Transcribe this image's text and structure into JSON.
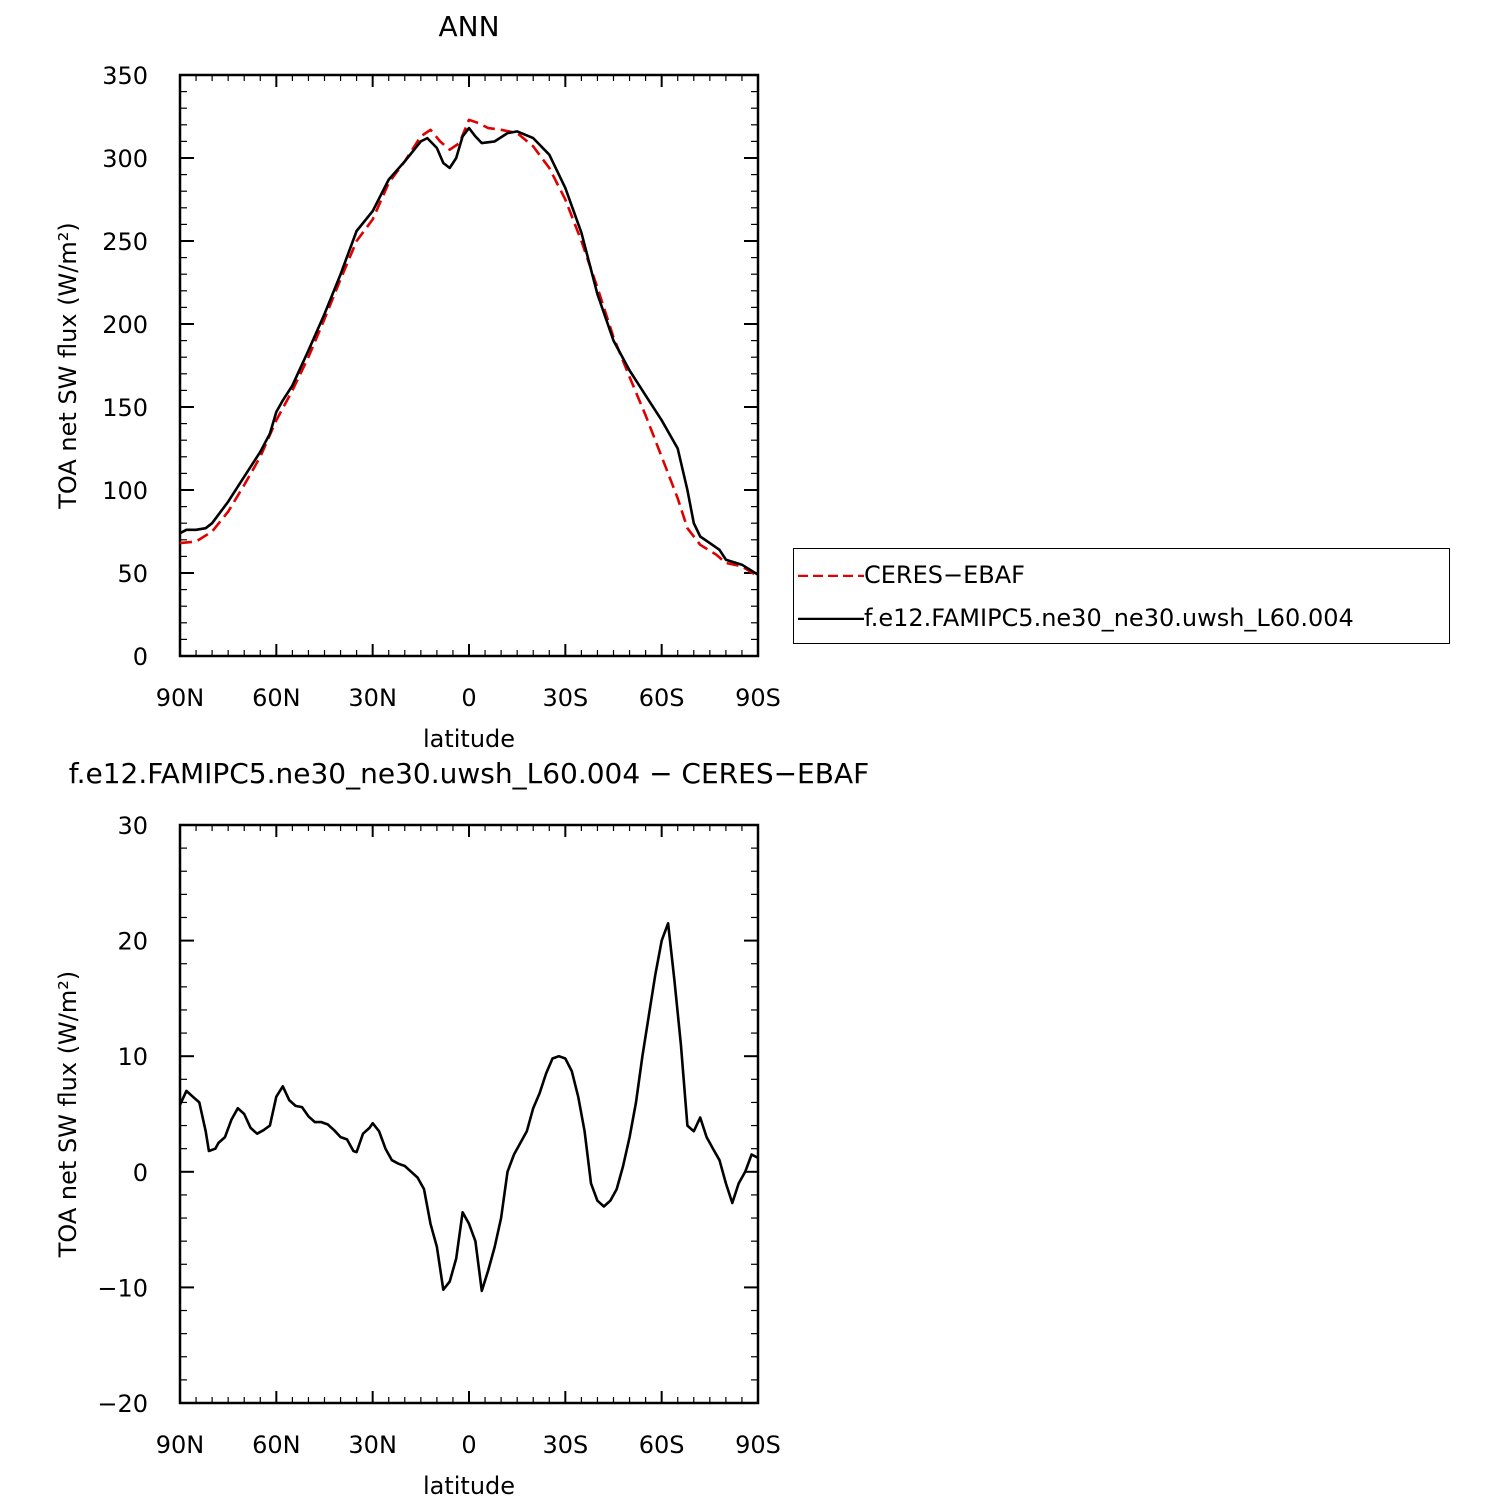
{
  "chart_data": [
    {
      "type": "line",
      "title": "ANN",
      "xlabel": "latitude",
      "ylabel": "TOA net SW flux (W/m²)",
      "xlim": [
        90,
        -90
      ],
      "ylim": [
        0,
        350
      ],
      "x_ticks": [
        90,
        60,
        30,
        0,
        -30,
        -60,
        -90
      ],
      "x_tick_labels": [
        "90N",
        "60N",
        "30N",
        "0",
        "30S",
        "60S",
        "90S"
      ],
      "y_ticks": [
        0,
        50,
        100,
        150,
        200,
        250,
        300,
        350
      ],
      "y_tick_labels": [
        "0",
        "50",
        "100",
        "150",
        "200",
        "250",
        "300",
        "350"
      ],
      "legend_position": "right",
      "series": [
        {
          "name": "CERES−EBAF",
          "color": "#e00000",
          "dash": "dashed",
          "points": [
            [
              90,
              68
            ],
            [
              85,
              69
            ],
            [
              80,
              75
            ],
            [
              75,
              87
            ],
            [
              70,
              103
            ],
            [
              65,
              120
            ],
            [
              60,
              142
            ],
            [
              55,
              160
            ],
            [
              50,
              180
            ],
            [
              45,
              203
            ],
            [
              40,
              227
            ],
            [
              35,
              250
            ],
            [
              30,
              263
            ],
            [
              25,
              285
            ],
            [
              20,
              298
            ],
            [
              15,
              313
            ],
            [
              12,
              317
            ],
            [
              9,
              310
            ],
            [
              6,
              305
            ],
            [
              3,
              309
            ],
            [
              0,
              323
            ],
            [
              -3,
              321
            ],
            [
              -6,
              318
            ],
            [
              -10,
              317
            ],
            [
              -15,
              315
            ],
            [
              -20,
              307
            ],
            [
              -25,
              294
            ],
            [
              -30,
              275
            ],
            [
              -35,
              250
            ],
            [
              -40,
              222
            ],
            [
              -45,
              192
            ],
            [
              -50,
              168
            ],
            [
              -55,
              145
            ],
            [
              -60,
              120
            ],
            [
              -65,
              95
            ],
            [
              -68,
              77
            ],
            [
              -72,
              67
            ],
            [
              -77,
              61
            ],
            [
              -80,
              56
            ],
            [
              -85,
              54
            ],
            [
              -90,
              48
            ]
          ]
        },
        {
          "name": "f.e12.FAMIPC5.ne30_ne30.uwsh_L60.004",
          "color": "#000000",
          "dash": "solid",
          "points": [
            [
              90,
              74
            ],
            [
              88,
              76
            ],
            [
              85,
              76
            ],
            [
              82,
              77
            ],
            [
              80,
              80
            ],
            [
              75,
              93
            ],
            [
              70,
              108
            ],
            [
              65,
              123
            ],
            [
              62,
              134
            ],
            [
              60,
              147
            ],
            [
              58,
              154
            ],
            [
              55,
              163
            ],
            [
              50,
              184
            ],
            [
              45,
              206
            ],
            [
              40,
              230
            ],
            [
              35,
              256
            ],
            [
              30,
              268
            ],
            [
              25,
              287
            ],
            [
              20,
              298
            ],
            [
              15,
              310
            ],
            [
              13,
              312
            ],
            [
              10,
              306
            ],
            [
              8,
              297
            ],
            [
              6,
              294
            ],
            [
              4,
              300
            ],
            [
              2,
              313
            ],
            [
              0,
              318
            ],
            [
              -2,
              313
            ],
            [
              -4,
              309
            ],
            [
              -8,
              310
            ],
            [
              -12,
              315
            ],
            [
              -15,
              316
            ],
            [
              -20,
              312
            ],
            [
              -25,
              302
            ],
            [
              -30,
              282
            ],
            [
              -35,
              255
            ],
            [
              -40,
              218
            ],
            [
              -45,
              190
            ],
            [
              -50,
              172
            ],
            [
              -55,
              157
            ],
            [
              -60,
              142
            ],
            [
              -65,
              125
            ],
            [
              -68,
              100
            ],
            [
              -70,
              80
            ],
            [
              -72,
              72
            ],
            [
              -75,
              68
            ],
            [
              -78,
              64
            ],
            [
              -80,
              58
            ],
            [
              -85,
              55
            ],
            [
              -90,
              49
            ]
          ]
        }
      ]
    },
    {
      "type": "line",
      "title": "f.e12.FAMIPC5.ne30_ne30.uwsh_L60.004 − CERES−EBAF",
      "xlabel": "latitude",
      "ylabel": "TOA net SW flux (W/m²)",
      "xlim": [
        90,
        -90
      ],
      "ylim": [
        -20,
        30
      ],
      "x_ticks": [
        90,
        60,
        30,
        0,
        -30,
        -60,
        -90
      ],
      "x_tick_labels": [
        "90N",
        "60N",
        "30N",
        "0",
        "30S",
        "60S",
        "90S"
      ],
      "y_ticks": [
        -20,
        -10,
        0,
        10,
        20,
        30
      ],
      "y_tick_labels": [
        "−20",
        "−10",
        "0",
        "10",
        "20",
        "30"
      ],
      "series": [
        {
          "color": "#000000",
          "dash": "solid",
          "points": [
            [
              90,
              5.8
            ],
            [
              88,
              7.0
            ],
            [
              86,
              6.5
            ],
            [
              84,
              6.0
            ],
            [
              82,
              3.5
            ],
            [
              81,
              1.8
            ],
            [
              79,
              2.0
            ],
            [
              78,
              2.5
            ],
            [
              76,
              3.0
            ],
            [
              74,
              4.5
            ],
            [
              72,
              5.5
            ],
            [
              70,
              5.0
            ],
            [
              68,
              3.8
            ],
            [
              66,
              3.3
            ],
            [
              64,
              3.6
            ],
            [
              62,
              4.0
            ],
            [
              60,
              6.5
            ],
            [
              58,
              7.4
            ],
            [
              56,
              6.2
            ],
            [
              54,
              5.7
            ],
            [
              52,
              5.6
            ],
            [
              50,
              4.8
            ],
            [
              48,
              4.3
            ],
            [
              46,
              4.3
            ],
            [
              44,
              4.1
            ],
            [
              42,
              3.6
            ],
            [
              40,
              3.0
            ],
            [
              38,
              2.8
            ],
            [
              36,
              1.8
            ],
            [
              35,
              1.7
            ],
            [
              33,
              3.3
            ],
            [
              31,
              3.8
            ],
            [
              30,
              4.2
            ],
            [
              28,
              3.5
            ],
            [
              26,
              2.0
            ],
            [
              24,
              1.0
            ],
            [
              22,
              0.7
            ],
            [
              20,
              0.5
            ],
            [
              18,
              0.0
            ],
            [
              16,
              -0.5
            ],
            [
              14,
              -1.5
            ],
            [
              12,
              -4.5
            ],
            [
              10,
              -6.5
            ],
            [
              8,
              -10.2
            ],
            [
              6,
              -9.5
            ],
            [
              4,
              -7.5
            ],
            [
              2,
              -3.5
            ],
            [
              0,
              -4.5
            ],
            [
              -2,
              -6.0
            ],
            [
              -4,
              -10.3
            ],
            [
              -6,
              -8.5
            ],
            [
              -8,
              -6.5
            ],
            [
              -10,
              -4.0
            ],
            [
              -12,
              0.0
            ],
            [
              -14,
              1.5
            ],
            [
              -16,
              2.5
            ],
            [
              -18,
              3.5
            ],
            [
              -20,
              5.5
            ],
            [
              -22,
              6.8
            ],
            [
              -24,
              8.5
            ],
            [
              -26,
              9.8
            ],
            [
              -28,
              10.0
            ],
            [
              -30,
              9.8
            ],
            [
              -32,
              8.7
            ],
            [
              -34,
              6.5
            ],
            [
              -36,
              3.5
            ],
            [
              -38,
              -1.0
            ],
            [
              -40,
              -2.5
            ],
            [
              -42,
              -3.0
            ],
            [
              -44,
              -2.5
            ],
            [
              -46,
              -1.5
            ],
            [
              -48,
              0.5
            ],
            [
              -50,
              3.0
            ],
            [
              -52,
              6.0
            ],
            [
              -54,
              10.0
            ],
            [
              -56,
              13.5
            ],
            [
              -58,
              17.0
            ],
            [
              -60,
              20.0
            ],
            [
              -62,
              21.5
            ],
            [
              -64,
              16.5
            ],
            [
              -66,
              11.0
            ],
            [
              -68,
              4.0
            ],
            [
              -70,
              3.5
            ],
            [
              -72,
              4.7
            ],
            [
              -74,
              3.0
            ],
            [
              -76,
              2.0
            ],
            [
              -78,
              1.0
            ],
            [
              -80,
              -1.0
            ],
            [
              -82,
              -2.7
            ],
            [
              -84,
              -1.0
            ],
            [
              -86,
              0.0
            ],
            [
              -88,
              1.5
            ],
            [
              -90,
              1.2
            ]
          ]
        }
      ]
    }
  ]
}
